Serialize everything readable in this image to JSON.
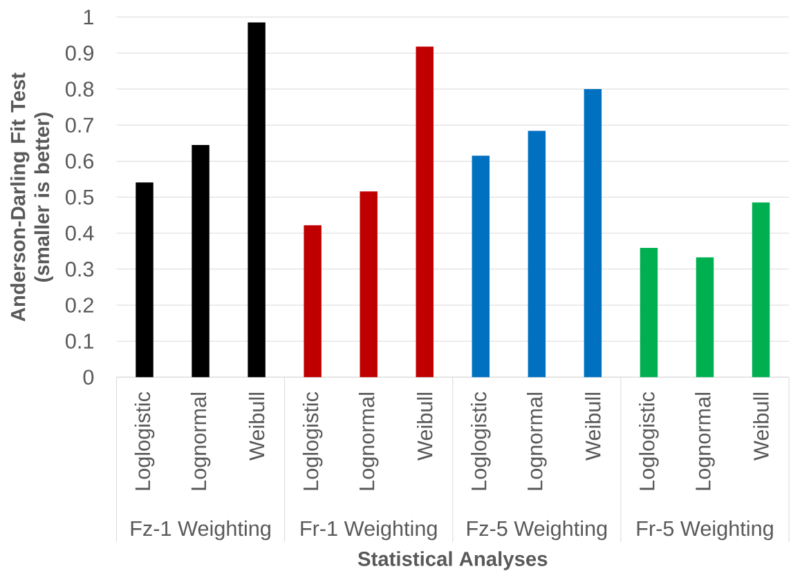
{
  "chart_data": {
    "type": "bar",
    "xlabel": "Statistical Analyses",
    "ylabel": "Anderson-Darling Fit Test (smaller is better)",
    "categories": [
      "Loglogistic",
      "Lognormal",
      "Weibull",
      "Loglogistic",
      "Lognormal",
      "Weibull",
      "Loglogistic",
      "Lognormal",
      "Weibull",
      "Loglogistic",
      "Lognormal",
      "Weibull"
    ],
    "values": [
      0.541,
      0.645,
      0.985,
      0.422,
      0.516,
      0.918,
      0.615,
      0.684,
      0.8,
      0.359,
      0.333,
      0.485
    ],
    "colors": [
      "#000000",
      "#000000",
      "#000000",
      "#c00000",
      "#c00000",
      "#c00000",
      "#0070c0",
      "#0070c0",
      "#0070c0",
      "#00b050",
      "#00b050",
      "#00b050"
    ],
    "annotations": [
      "Fz-1 Weighting",
      "Fr-1 Weighting",
      "Fz-5 Weighting",
      "Fr-5 Weighting"
    ],
    "ylim": [
      0,
      1
    ],
    "yticks": [
      0,
      0.1,
      0.2,
      0.3,
      0.4,
      0.5,
      0.6,
      0.7,
      0.8,
      0.9,
      1
    ],
    "grid": "y"
  }
}
